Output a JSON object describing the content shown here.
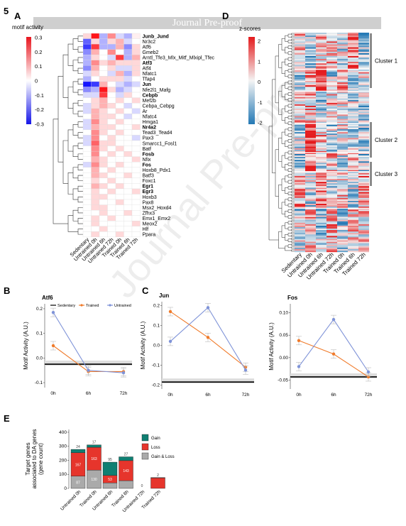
{
  "figure_number": "5",
  "banner": "Journal Pre-proof",
  "watermark": "Journal Pre-proof",
  "panels": {
    "A": "A",
    "B": "B",
    "C": "C",
    "D": "D",
    "E": "E"
  },
  "colors": {
    "sedentary": "#000000",
    "trained": "#f07b2b",
    "untrained": "#7f93d8",
    "gain": "#0f7f72",
    "loss": "#e6352c",
    "gain_loss": "#aaaaaa"
  },
  "chart_data": [
    {
      "id": "A",
      "type": "heatmap",
      "legend_title": "motif activity",
      "legend_ticks": [
        "0.3",
        "0.2",
        "0.1",
        "0",
        "-0.1",
        "-0.2",
        "-0.3"
      ],
      "columns": [
        "Sedentary",
        "Untrained 0h",
        "Untrained 6h",
        "Untrained 72h",
        "Trained 0h",
        "Trained 6h",
        "Trained 72h"
      ],
      "rows": [
        {
          "name": "Junb_Jund",
          "bold": true,
          "values": [
            0.05,
            0.3,
            -0.1,
            0.15,
            -0.05,
            -0.1,
            0.02
          ]
        },
        {
          "name": "Nr3c2",
          "bold": false,
          "values": [
            -0.2,
            0.05,
            -0.1,
            0.05,
            0.1,
            -0.05,
            0.0
          ]
        },
        {
          "name": "Atf6",
          "bold": false,
          "values": [
            -0.25,
            0.25,
            -0.1,
            -0.1,
            0.1,
            -0.15,
            0.05
          ]
        },
        {
          "name": "Gmeb2",
          "bold": false,
          "values": [
            -0.15,
            0.1,
            0.0,
            0.15,
            0.0,
            -0.1,
            0.05
          ]
        },
        {
          "name": "Arntl_Tfe3_Mlx_Mitf_Mlxipl_Tfec",
          "bold": false,
          "values": [
            -0.1,
            0.05,
            0.0,
            -0.05,
            0.25,
            -0.1,
            0.1
          ]
        },
        {
          "name": "Atf3",
          "bold": true,
          "values": [
            -0.1,
            0.15,
            0.05,
            0.1,
            0.05,
            0.05,
            0.05
          ]
        },
        {
          "name": "Atf4",
          "bold": false,
          "values": [
            -0.15,
            0.1,
            0.0,
            0.05,
            -0.05,
            -0.05,
            0.05
          ]
        },
        {
          "name": "Nfatc1",
          "bold": false,
          "values": [
            -0.05,
            0.05,
            0.0,
            -0.05,
            0.1,
            -0.1,
            0.05
          ]
        },
        {
          "name": "Tfap4",
          "bold": false,
          "values": [
            -0.1,
            0.0,
            0.05,
            0.05,
            0.05,
            -0.05,
            0.0
          ]
        },
        {
          "name": "Jun",
          "bold": true,
          "values": [
            -0.3,
            -0.25,
            0.1,
            0.0,
            -0.05,
            -0.1,
            -0.05
          ]
        },
        {
          "name": "Nfe2l1_Mafg",
          "bold": false,
          "values": [
            -0.15,
            -0.1,
            0.3,
            0.05,
            -0.1,
            -0.05,
            0.0
          ]
        },
        {
          "name": "Cebpb",
          "bold": true,
          "values": [
            -0.05,
            -0.05,
            0.25,
            0.0,
            -0.05,
            0.05,
            0.0
          ]
        },
        {
          "name": "Mef2b",
          "bold": false,
          "values": [
            0.0,
            0.05,
            0.1,
            0.0,
            0.05,
            0.0,
            0.05
          ]
        },
        {
          "name": "Cebpa_Cebpg",
          "bold": false,
          "values": [
            -0.05,
            0.05,
            0.1,
            0.05,
            0.0,
            -0.05,
            0.0
          ]
        },
        {
          "name": "Ar",
          "bold": false,
          "values": [
            -0.05,
            0.1,
            0.05,
            0.0,
            0.05,
            0.0,
            -0.05
          ]
        },
        {
          "name": "Nfatc4",
          "bold": false,
          "values": [
            0.0,
            0.1,
            0.05,
            0.05,
            0.0,
            -0.05,
            0.0
          ]
        },
        {
          "name": "Hmga1",
          "bold": false,
          "values": [
            -0.05,
            0.15,
            0.05,
            0.0,
            0.05,
            0.0,
            0.0
          ]
        },
        {
          "name": "Nr4a2",
          "bold": true,
          "values": [
            -0.05,
            0.1,
            0.05,
            0.05,
            0.0,
            0.0,
            0.05
          ]
        },
        {
          "name": "Tead3_Tead4",
          "bold": false,
          "values": [
            0.0,
            0.15,
            0.05,
            0.0,
            0.05,
            0.0,
            0.0
          ]
        },
        {
          "name": "Pax3",
          "bold": false,
          "values": [
            -0.05,
            0.15,
            0.0,
            0.05,
            0.0,
            0.0,
            -0.05
          ]
        },
        {
          "name": "Smarcc1_Fosl1",
          "bold": false,
          "values": [
            -0.05,
            0.2,
            0.05,
            0.05,
            0.0,
            0.0,
            0.0
          ]
        },
        {
          "name": "Batf",
          "bold": false,
          "values": [
            0.0,
            0.15,
            0.05,
            0.0,
            0.05,
            0.0,
            0.0
          ]
        },
        {
          "name": "Fosb",
          "bold": true,
          "values": [
            0.0,
            0.15,
            0.0,
            0.05,
            0.0,
            0.05,
            0.0
          ]
        },
        {
          "name": "Nfix",
          "bold": false,
          "values": [
            0.0,
            0.1,
            0.05,
            0.0,
            0.0,
            0.0,
            0.05
          ]
        },
        {
          "name": "Fos",
          "bold": true,
          "values": [
            -0.05,
            0.15,
            0.05,
            0.0,
            0.05,
            0.0,
            0.0
          ]
        },
        {
          "name": "Hoxb8_Pdx1",
          "bold": false,
          "values": [
            0.0,
            0.1,
            0.0,
            0.05,
            0.0,
            0.0,
            0.0
          ]
        },
        {
          "name": "Batf3",
          "bold": false,
          "values": [
            0.0,
            0.1,
            0.05,
            0.0,
            0.0,
            0.05,
            0.0
          ]
        },
        {
          "name": "Foxc1",
          "bold": false,
          "values": [
            0.0,
            0.05,
            0.0,
            0.05,
            0.0,
            0.0,
            0.0
          ]
        },
        {
          "name": "Egr1",
          "bold": true,
          "values": [
            0.0,
            0.1,
            0.05,
            0.0,
            0.05,
            0.0,
            0.0
          ]
        },
        {
          "name": "Egr3",
          "bold": true,
          "values": [
            0.0,
            0.05,
            0.0,
            0.05,
            0.0,
            0.0,
            0.05
          ]
        },
        {
          "name": "Hoxb3",
          "bold": false,
          "values": [
            0.0,
            0.05,
            0.05,
            0.0,
            0.0,
            0.0,
            0.0
          ]
        },
        {
          "name": "Pax8",
          "bold": false,
          "values": [
            0.0,
            0.05,
            0.0,
            0.0,
            0.05,
            0.0,
            0.0
          ]
        },
        {
          "name": "Msx2_Hoxd4",
          "bold": false,
          "values": [
            0.0,
            0.05,
            0.05,
            0.0,
            0.0,
            0.0,
            0.0
          ]
        },
        {
          "name": "Zfhx3",
          "bold": false,
          "values": [
            0.0,
            0.0,
            0.05,
            0.0,
            0.0,
            0.05,
            0.0
          ]
        },
        {
          "name": "Emx1_Emx2",
          "bold": false,
          "values": [
            0.0,
            0.05,
            0.0,
            0.05,
            0.0,
            0.0,
            0.0
          ]
        },
        {
          "name": "Meox2",
          "bold": false,
          "values": [
            0.0,
            0.05,
            0.0,
            0.0,
            0.0,
            0.0,
            0.05
          ]
        },
        {
          "name": "Hlf",
          "bold": false,
          "values": [
            0.0,
            0.0,
            0.05,
            0.0,
            0.0,
            0.0,
            0.0
          ]
        },
        {
          "name": "Ppara",
          "bold": false,
          "values": [
            0.0,
            0.05,
            0.0,
            0.0,
            0.05,
            0.0,
            0.0
          ]
        }
      ]
    },
    {
      "id": "B",
      "type": "line",
      "title": "Atf6",
      "ylabel": "Motif Activity (A.U.)",
      "categories": [
        "0h",
        "6h",
        "72h"
      ],
      "yticks": [
        "0.2",
        "0.1",
        "0.0",
        "-0.1"
      ],
      "ylim": [
        -0.12,
        0.22
      ],
      "legend": [
        "Sedentary",
        "Trained",
        "Untrained"
      ],
      "sedentary": -0.025,
      "series": [
        {
          "name": "Trained",
          "values": [
            0.05,
            -0.055,
            -0.055
          ]
        },
        {
          "name": "Untrained",
          "values": [
            0.185,
            -0.05,
            -0.06
          ]
        }
      ]
    },
    {
      "id": "C1",
      "type": "line",
      "title": "Jun",
      "ylabel": "Motif Activity (A.U.)",
      "categories": [
        "0h",
        "6h",
        "72h"
      ],
      "yticks": [
        "0.2",
        "0.1",
        "0.0",
        "-0.1",
        "-0.2"
      ],
      "ylim": [
        -0.22,
        0.22
      ],
      "sedentary": -0.185,
      "series": [
        {
          "name": "Trained",
          "values": [
            0.17,
            0.04,
            -0.11
          ]
        },
        {
          "name": "Untrained",
          "values": [
            0.02,
            0.19,
            -0.125
          ]
        }
      ]
    },
    {
      "id": "C2",
      "type": "line",
      "title": "Fos",
      "ylabel": "Motif Activity (A.U.)",
      "categories": [
        "0h",
        "6h",
        "72h"
      ],
      "yticks": [
        "0.10",
        "0.05",
        "0.00",
        "-0.05"
      ],
      "ylim": [
        -0.07,
        0.12
      ],
      "sedentary": -0.043,
      "series": [
        {
          "name": "Trained",
          "values": [
            0.038,
            0.008,
            -0.043
          ]
        },
        {
          "name": "Untrained",
          "values": [
            -0.02,
            0.085,
            -0.032
          ]
        }
      ]
    },
    {
      "id": "D",
      "type": "heatmap",
      "legend_title": "z-scores",
      "legend_ticks": [
        "2",
        "1",
        "0",
        "-1",
        "-2"
      ],
      "columns": [
        "Sedentary",
        "Untrained 0h",
        "Untrained 6h",
        "Untrained 72h",
        "Trained 0h",
        "Trained 6h",
        "Trained 72h"
      ],
      "clusters": [
        "Cluster 1",
        "Cluster 2",
        "Cluster 3"
      ]
    },
    {
      "id": "E",
      "type": "bar",
      "ylabel": "Target genes associated to DA genes (gene count)",
      "yticks": [
        "400",
        "300",
        "200",
        "100",
        "0"
      ],
      "ylim": [
        0,
        420
      ],
      "categories": [
        "Untrained 0h",
        "Trained 0h",
        "Untrained 6h",
        "Trained 6h",
        "Untrained 72h",
        "Trained 72h"
      ],
      "series": [
        {
          "name": "Gain & Loss",
          "values": [
            87,
            130,
            39,
            55,
            0,
            0
          ],
          "labels": [
            "87",
            "130",
            "",
            "",
            "",
            ""
          ]
        },
        {
          "name": "Loss",
          "values": [
            167,
            163,
            53,
            143,
            0,
            75
          ],
          "labels": [
            "167",
            "163",
            "53",
            "143",
            "",
            ""
          ]
        },
        {
          "name": "Gain",
          "values": [
            24,
            17,
            95,
            27,
            0,
            2
          ],
          "labels": [
            "24",
            "17",
            "95",
            "27",
            "0",
            "2"
          ]
        }
      ],
      "legend": [
        "Gain",
        "Loss",
        "Gain & Loss"
      ]
    }
  ]
}
